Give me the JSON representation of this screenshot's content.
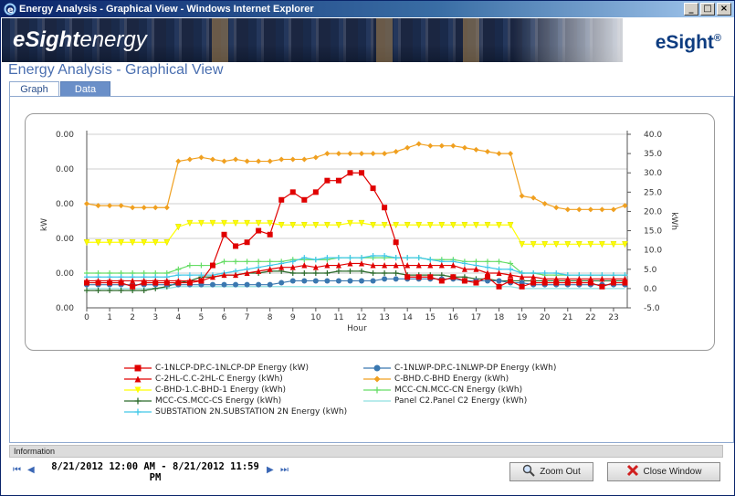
{
  "window": {
    "title": "Energy Analysis - Graphical View - Windows Internet Explorer",
    "minimize": "_",
    "maximize": "□",
    "close": "×"
  },
  "banner": {
    "logo_bold": "eSight",
    "logo_light": "energy",
    "brand": "eSight",
    "brand_mark": "®"
  },
  "page": {
    "title": "Energy Analysis - Graphical View"
  },
  "tabs": [
    {
      "label": "Graph",
      "active": true
    },
    {
      "label": "Data",
      "active": false
    }
  ],
  "info": {
    "label": "Information",
    "date_range": "8/21/2012 12:00 AM - 8/21/2012 11:59 PM",
    "first": "⏮",
    "prev": "◀",
    "next": "▶",
    "last": "⏭"
  },
  "buttons": {
    "zoom_out": "Zoom Out",
    "close_window": "Close Window"
  },
  "colors": {
    "title_blue": "#4a6fb0",
    "tab_blue": "#6a8fc8"
  },
  "chart_data": {
    "type": "line",
    "xlabel": "Hour",
    "ylabel_left": "kW",
    "ylabel_right": "kWh",
    "x": [
      0,
      0.5,
      1,
      1.5,
      2,
      2.5,
      3,
      3.5,
      4,
      4.5,
      5,
      5.5,
      6,
      6.5,
      7,
      7.5,
      8,
      8.5,
      9,
      9.5,
      10,
      10.5,
      11,
      11.5,
      12,
      12.5,
      13,
      13.5,
      14,
      14.5,
      15,
      15.5,
      16,
      16.5,
      17,
      17.5,
      18,
      18.5,
      19,
      19.5,
      20,
      20.5,
      21,
      21.5,
      22,
      22.5,
      23,
      23.5
    ],
    "x_ticks": [
      "0",
      "1",
      "2",
      "3",
      "4",
      "5",
      "6",
      "7",
      "8",
      "9",
      "10",
      "11",
      "12",
      "13",
      "14",
      "15",
      "16",
      "17",
      "18",
      "19",
      "20",
      "21",
      "22",
      "23"
    ],
    "left_ticks": [
      "0.00",
      "0.00",
      "0.00",
      "0.00",
      "0.00",
      "0.00"
    ],
    "right_ticks": [
      "40.0",
      "35.0",
      "30.0",
      "25.0",
      "20.0",
      "15.0",
      "10.0",
      "5.0",
      "0.0",
      "-5.0"
    ],
    "ylim_right": [
      -5,
      40
    ],
    "series": [
      {
        "name": "C-1NLCP-DP.C-1NLCP-DP Energy (kW)",
        "color": "#e00000",
        "marker": "square",
        "values": [
          1.5,
          1.5,
          1.5,
          1.5,
          0.5,
          1.5,
          1.5,
          1.5,
          1.5,
          1.5,
          2,
          6,
          14,
          11,
          12,
          15,
          14,
          23,
          25,
          23,
          25,
          28,
          28,
          30,
          30,
          26,
          21,
          12,
          3,
          3,
          3,
          2,
          3,
          2,
          1.5,
          3,
          0.5,
          2,
          0.5,
          1.5,
          1.5,
          1.5,
          1.5,
          1.5,
          1.5,
          0.5,
          1.5,
          1.5
        ]
      },
      {
        "name": "C-1NLWP-DP.C-1NLWP-DP Energy (kWh)",
        "color": "#3a78b0",
        "marker": "circle",
        "values": [
          1,
          1,
          1,
          1,
          1,
          1,
          1,
          1,
          1,
          1,
          1,
          1,
          1,
          1,
          1,
          1,
          1,
          1.5,
          2,
          2,
          2,
          2,
          2,
          2,
          2,
          2,
          2.5,
          2.5,
          2.5,
          2.5,
          2.5,
          2.5,
          2.5,
          2,
          2,
          2,
          2,
          1.5,
          1.5,
          1,
          1,
          1,
          1,
          1,
          1,
          1,
          1,
          1
        ]
      },
      {
        "name": "C-2HL-C.C-2HL-C  Energy (kWh)",
        "color": "#e00000",
        "marker": "triangle",
        "values": [
          2,
          2,
          2,
          2,
          2,
          2,
          2,
          2,
          2,
          2,
          2,
          3,
          3.5,
          3.5,
          4,
          4.5,
          5,
          5.5,
          5.5,
          6,
          5.5,
          6,
          6,
          6.5,
          6.5,
          6,
          6,
          6,
          6,
          6,
          6,
          6,
          6,
          5,
          5,
          4,
          4,
          3.5,
          3,
          3,
          2.5,
          2.5,
          2.5,
          2.5,
          2.5,
          2.5,
          2.5,
          2.5
        ]
      },
      {
        "name": "C-BHD.C-BHD Energy (kWh)",
        "color": "#f0a020",
        "marker": "diamond",
        "values": [
          22,
          21.5,
          21.5,
          21.5,
          21,
          21,
          21,
          21,
          33,
          33.5,
          34,
          33.5,
          33,
          33.5,
          33,
          33,
          33,
          33.5,
          33.5,
          33.5,
          34,
          35,
          35,
          35,
          35,
          35,
          35,
          35.5,
          36.5,
          37.5,
          37,
          37,
          37,
          36.5,
          36,
          35.5,
          35,
          35,
          24,
          23.5,
          22,
          21,
          20.5,
          20.5,
          20.5,
          20.5,
          20.5,
          21.5
        ]
      },
      {
        "name": "C-BHD-1.C-BHD-1 Energy (kWh)",
        "color": "#ffff00",
        "marker": "triangle-down",
        "values": [
          12,
          12,
          12,
          12,
          12,
          12,
          12,
          12,
          16,
          17,
          17,
          17,
          17,
          17,
          17,
          17,
          17,
          16.5,
          16.5,
          16.5,
          16.5,
          16.5,
          16.5,
          17,
          17,
          16.5,
          16.5,
          16.5,
          16.5,
          16.5,
          16.5,
          16.5,
          16.5,
          16.5,
          16.5,
          16.5,
          16.5,
          16.5,
          11.5,
          11.5,
          11.5,
          11.5,
          11.5,
          11.5,
          11.5,
          11.5,
          11.5,
          11.5
        ]
      },
      {
        "name": "MCC-CN.MCC-CN Energy (kWh)",
        "color": "#66dd66",
        "marker": "plus",
        "values": [
          4,
          4,
          4,
          4,
          4,
          4,
          4,
          4,
          5,
          6,
          6,
          6,
          7,
          7,
          7,
          7,
          7,
          7,
          7.5,
          7.5,
          7.5,
          7.5,
          8,
          8,
          8,
          8,
          8,
          8,
          8,
          8,
          7.5,
          7.5,
          7.5,
          7,
          7,
          7,
          7,
          6.5,
          4,
          4,
          3.5,
          3.5,
          3.5,
          3.5,
          3.5,
          3.5,
          3.5,
          3.5
        ]
      },
      {
        "name": "MCC-CS.MCC-CS Energy (kWh)",
        "color": "#2a6a2a",
        "marker": "plus",
        "values": [
          -0.5,
          -0.5,
          -0.5,
          -0.5,
          -0.5,
          -0.5,
          0,
          0.5,
          1.5,
          2,
          3,
          3,
          3.5,
          3.5,
          4,
          4,
          4.5,
          4.5,
          4,
          4,
          4,
          4,
          4.5,
          4.5,
          4.5,
          4,
          4,
          4,
          3.5,
          3.5,
          3.5,
          3.5,
          3,
          3,
          2.5,
          2.5,
          2,
          2,
          2,
          2,
          2,
          2,
          2,
          2,
          2,
          2,
          2,
          2
        ]
      },
      {
        "name": "Panel C2.Panel C2 Energy (kWh)",
        "color": "#8fdfe0",
        "marker": "none",
        "values": [
          0,
          0,
          0,
          0,
          0,
          0,
          0,
          0,
          0.5,
          0.5,
          0.5,
          0.5,
          0.5,
          0.5,
          0.5,
          0.5,
          0.5,
          0.5,
          0.5,
          0.5,
          0.5,
          0.5,
          0.5,
          0.5,
          0.5,
          0.5,
          0.5,
          0.5,
          0.5,
          0.5,
          0.5,
          0.5,
          0.5,
          0.5,
          0.5,
          0.5,
          0.5,
          0.5,
          0,
          0,
          0,
          0,
          0,
          0,
          0,
          0,
          0,
          0
        ]
      },
      {
        "name": "SUBSTATION 2N.SUBSTATION 2N Energy (kWh)",
        "color": "#40c8e8",
        "marker": "plus",
        "values": [
          3,
          3,
          3,
          3,
          3,
          3,
          3,
          3,
          3.5,
          3.5,
          3.5,
          3.5,
          4,
          4.5,
          5,
          5.5,
          6,
          6.5,
          7,
          8,
          7.5,
          8,
          8,
          8,
          8,
          8.5,
          8.5,
          8,
          8,
          8,
          7.5,
          7,
          7,
          6.5,
          6,
          5.5,
          5,
          5,
          4,
          4,
          4,
          4,
          3.5,
          3.5,
          3.5,
          3.5,
          3.5,
          3.5
        ]
      }
    ]
  }
}
